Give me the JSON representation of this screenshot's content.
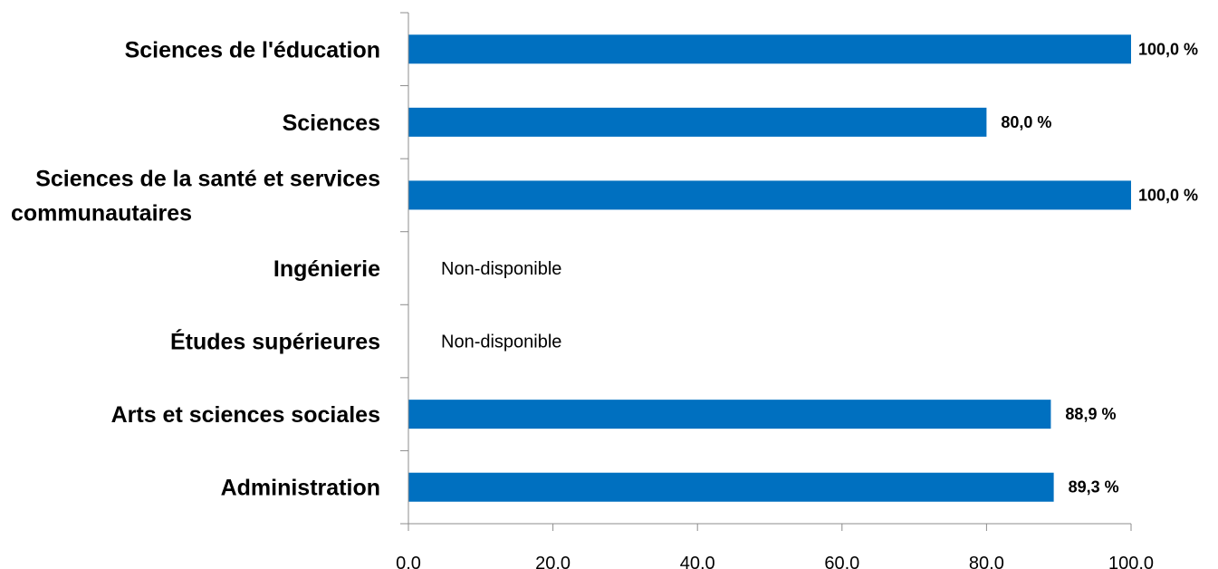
{
  "chart_data": {
    "type": "bar",
    "orientation": "horizontal",
    "categories": [
      [
        "Sciences de l'éducation"
      ],
      [
        "Sciences"
      ],
      [
        "Sciences de la santé et services",
        "communautaires"
      ],
      [
        "Ingénierie"
      ],
      [
        "Études supérieures"
      ],
      [
        "Arts et sciences sociales"
      ],
      [
        "Administration"
      ]
    ],
    "values": [
      100.0,
      80.0,
      100.0,
      null,
      null,
      88.9,
      89.3
    ],
    "value_labels": [
      "100,0 %",
      "80,0 %",
      "100,0 %",
      "Non-disponible",
      "Non-disponible",
      "88,9 %",
      "89,3 %"
    ],
    "xlim": [
      0,
      100
    ],
    "xticks": [
      0,
      20,
      40,
      60,
      80,
      100
    ],
    "xtick_labels": [
      "0,0",
      "20,0",
      "40,0",
      "60,0",
      "80,0",
      "100,0"
    ],
    "bar_color": "#0070C0",
    "grid": false,
    "legend": "none"
  }
}
